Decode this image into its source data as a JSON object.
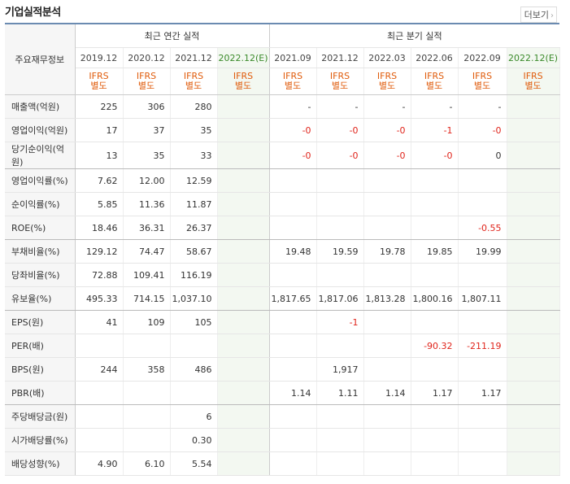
{
  "title": "기업실적분석",
  "more_label": "더보기",
  "table": {
    "corner_label": "주요재무정보",
    "annual_header": "최근 연간 실적",
    "quarter_header": "최근 분기 실적",
    "annual_periods": [
      "2019.12",
      "2020.12",
      "2021.12",
      "2022.12(E)"
    ],
    "quarter_periods": [
      "2021.09",
      "2021.12",
      "2022.03",
      "2022.06",
      "2022.09",
      "2022.12(E)"
    ],
    "ifrs_top": "IFRS",
    "ifrs_bottom": "별도",
    "rows": [
      {
        "label": "매출액(억원)",
        "values": [
          "225",
          "306",
          "280",
          "",
          "-",
          "-",
          "-",
          "-",
          "-",
          ""
        ]
      },
      {
        "label": "영업이익(억원)",
        "values": [
          "17",
          "37",
          "35",
          "",
          "-0",
          "-0",
          "-0",
          "-1",
          "-0",
          ""
        ]
      },
      {
        "label": "당기순이익(억원)",
        "values": [
          "13",
          "35",
          "33",
          "",
          "-0",
          "-0",
          "-0",
          "-0",
          "0",
          ""
        ]
      },
      {
        "label": "영업이익률(%)",
        "values": [
          "7.62",
          "12.00",
          "12.59",
          "",
          "",
          "",
          "",
          "",
          "",
          ""
        ]
      },
      {
        "label": "순이익률(%)",
        "values": [
          "5.85",
          "11.36",
          "11.87",
          "",
          "",
          "",
          "",
          "",
          "",
          ""
        ]
      },
      {
        "label": "ROE(%)",
        "values": [
          "18.46",
          "36.31",
          "26.37",
          "",
          "",
          "",
          "",
          "",
          "-0.55",
          ""
        ]
      },
      {
        "label": "부채비율(%)",
        "values": [
          "129.12",
          "74.47",
          "58.67",
          "",
          "19.48",
          "19.59",
          "19.78",
          "19.85",
          "19.99",
          ""
        ]
      },
      {
        "label": "당좌비율(%)",
        "values": [
          "72.88",
          "109.41",
          "116.19",
          "",
          "",
          "",
          "",
          "",
          "",
          ""
        ]
      },
      {
        "label": "유보율(%)",
        "values": [
          "495.33",
          "714.15",
          "1,037.10",
          "",
          "1,817.65",
          "1,817.06",
          "1,813.28",
          "1,800.16",
          "1,807.11",
          ""
        ]
      },
      {
        "label": "EPS(원)",
        "values": [
          "41",
          "109",
          "105",
          "",
          "",
          "-1",
          "",
          "",
          "",
          ""
        ]
      },
      {
        "label": "PER(배)",
        "values": [
          "",
          "",
          "",
          "",
          "",
          "",
          "",
          "-90.32",
          "-211.19",
          ""
        ]
      },
      {
        "label": "BPS(원)",
        "values": [
          "244",
          "358",
          "486",
          "",
          "",
          "1,917",
          "",
          "",
          "",
          ""
        ]
      },
      {
        "label": "PBR(배)",
        "values": [
          "",
          "",
          "",
          "",
          "1.14",
          "1.11",
          "1.14",
          "1.17",
          "1.17",
          ""
        ]
      },
      {
        "label": "주당배당금(원)",
        "values": [
          "",
          "",
          "6",
          "",
          "",
          "",
          "",
          "",
          "",
          ""
        ]
      },
      {
        "label": "시가배당률(%)",
        "values": [
          "",
          "",
          "0.30",
          "",
          "",
          "",
          "",
          "",
          "",
          ""
        ]
      },
      {
        "label": "배당성향(%)",
        "values": [
          "4.90",
          "6.10",
          "5.54",
          "",
          "",
          "",
          "",
          "",
          "",
          ""
        ]
      }
    ]
  },
  "colors": {
    "accent_border": "#6b8bb1",
    "ifrs_text": "#e05c0c",
    "negative": "#e0241b",
    "estimate_bg": "#f3f8f1"
  }
}
